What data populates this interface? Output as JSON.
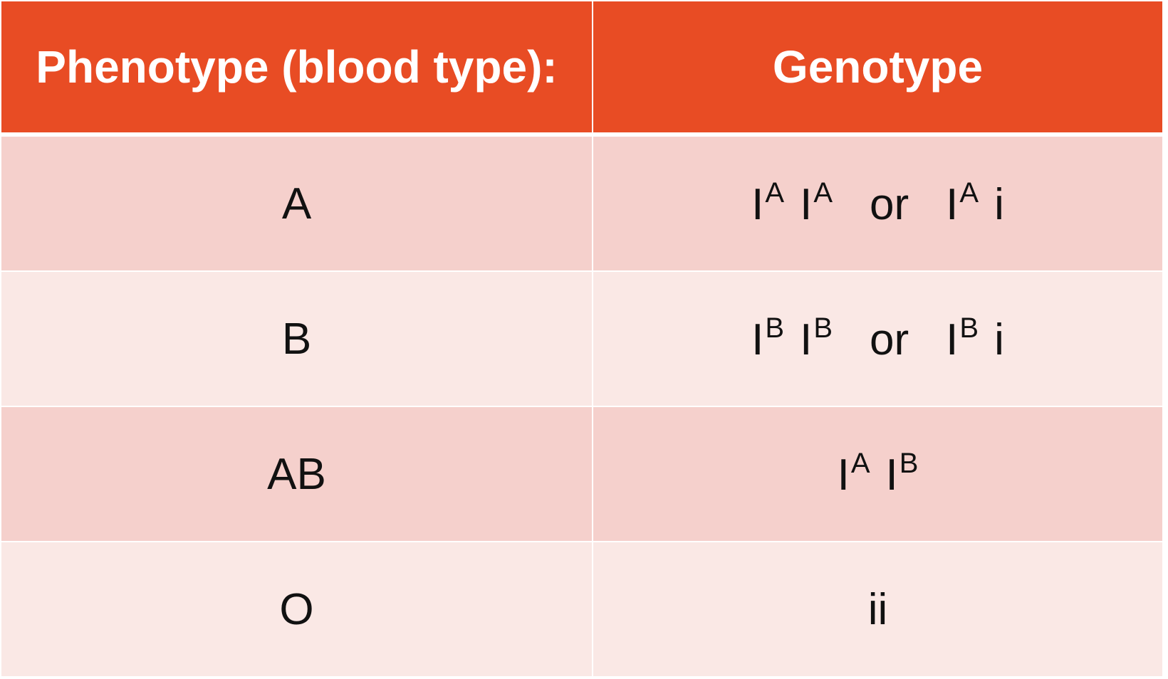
{
  "table": {
    "headers": {
      "phenotype": "Phenotype (blood type):",
      "genotype": "Genotype"
    },
    "rows": [
      {
        "phenotype": "A",
        "genotype": {
          "left": [
            {
              "base": "I",
              "sup": "A"
            },
            {
              "base": "I",
              "sup": "A"
            }
          ],
          "connector": "or",
          "right": [
            {
              "base": "I",
              "sup": "A"
            }
          ],
          "right_tail": "i"
        }
      },
      {
        "phenotype": "B",
        "genotype": {
          "left": [
            {
              "base": "I",
              "sup": "B"
            },
            {
              "base": "I",
              "sup": "B"
            }
          ],
          "connector": "or",
          "right": [
            {
              "base": "I",
              "sup": "B"
            }
          ],
          "right_tail": "i"
        }
      },
      {
        "phenotype": "AB",
        "genotype": {
          "left": [
            {
              "base": "I",
              "sup": "A"
            },
            {
              "base": "I",
              "sup": "B"
            }
          ]
        }
      },
      {
        "phenotype": "O",
        "genotype": {
          "plain": "ii"
        }
      }
    ]
  },
  "colors": {
    "header_bg": "#e84c24",
    "header_text": "#ffffff",
    "row_odd_bg": "#f5d0cc",
    "row_even_bg": "#fae8e5",
    "cell_text": "#111111"
  }
}
